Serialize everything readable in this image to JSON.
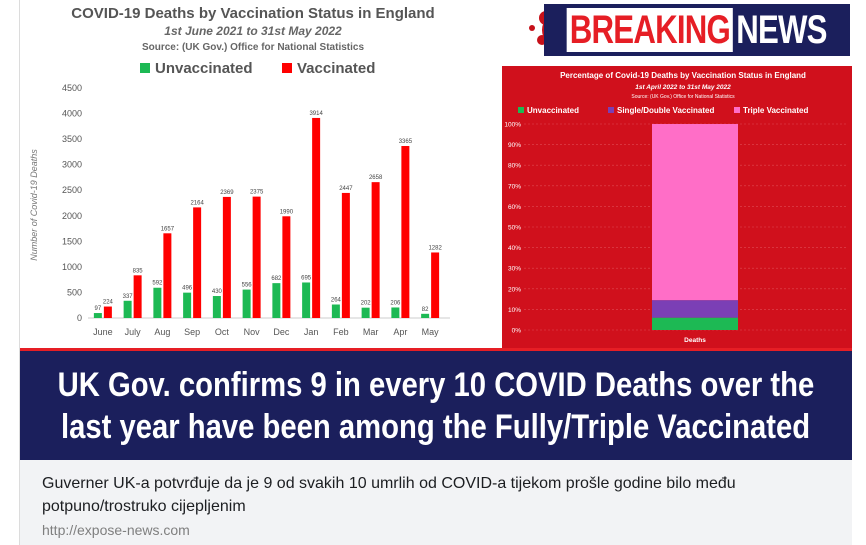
{
  "post": {
    "caption": "Guverner UK-a potvrđuje da je 9 od svakih 10 umrlih od COVID-a tijekom prošle godine bilo među potpuno/trostruko cijepljenim",
    "link_domain": "http://expose-news.com"
  },
  "headline": {
    "line1": "UK Gov. confirms 9 in every 10 COVID Deaths over the",
    "line2": "last year have been among the Fully/Triple Vaccinated"
  },
  "breaking_news": {
    "word1": "BREAKING",
    "word2": "NEWS"
  },
  "colors": {
    "green": "#1db954",
    "red": "#ff0000",
    "navy": "#1b1f5c",
    "panel_red": "#d0101c",
    "pink": "#ff6ec7",
    "purple": "#7b3fb5"
  },
  "chart_data": [
    {
      "type": "bar",
      "title": "COVID-19 Deaths by Vaccination Status in England",
      "subtitle": "1st June 2021 to 31st May 2022",
      "source": "Source: (UK Gov.) Office for National Statistics",
      "ylabel": "Number of Covid-19 Deaths",
      "xlabel": "",
      "ylim": [
        0,
        4500
      ],
      "yticks": [
        0,
        500,
        1000,
        1500,
        2000,
        2500,
        3000,
        3500,
        4000,
        4500
      ],
      "legend_position": "top",
      "categories": [
        "June",
        "July",
        "Aug",
        "Sep",
        "Oct",
        "Nov",
        "Dec",
        "Jan",
        "Feb",
        "Mar",
        "Apr",
        "May"
      ],
      "series": [
        {
          "name": "Unvaccinated",
          "color": "#1db954",
          "values": [
            97,
            337,
            592,
            496,
            430,
            556,
            682,
            695,
            264,
            202,
            206,
            82
          ]
        },
        {
          "name": "Vaccinated",
          "color": "#ff0000",
          "values": [
            224,
            835,
            1657,
            2164,
            2369,
            2375,
            1990,
            3914,
            2447,
            2658,
            3365,
            1282
          ]
        }
      ],
      "grid": false
    },
    {
      "type": "bar",
      "stacked": true,
      "title": "Percentage of Covid-19 Deaths by Vaccination Status in England",
      "subtitle": "1st April 2022 to 31st May 2022",
      "source": "Source: (UK Gov.) Office for National Statistics",
      "ylim": [
        0,
        100
      ],
      "yticks": [
        "0%",
        "10%",
        "20%",
        "30%",
        "40%",
        "50%",
        "60%",
        "70%",
        "80%",
        "90%",
        "100%"
      ],
      "categories": [
        "Deaths"
      ],
      "legend_position": "top",
      "series": [
        {
          "name": "Unvaccinated",
          "color": "#1db954",
          "values": [
            6
          ]
        },
        {
          "name": "Single/Double Vaccinated",
          "color": "#7b3fb5",
          "values": [
            8.5
          ]
        },
        {
          "name": "Triple Vaccinated",
          "color": "#ff6ec7",
          "values": [
            85.5
          ]
        }
      ]
    }
  ]
}
